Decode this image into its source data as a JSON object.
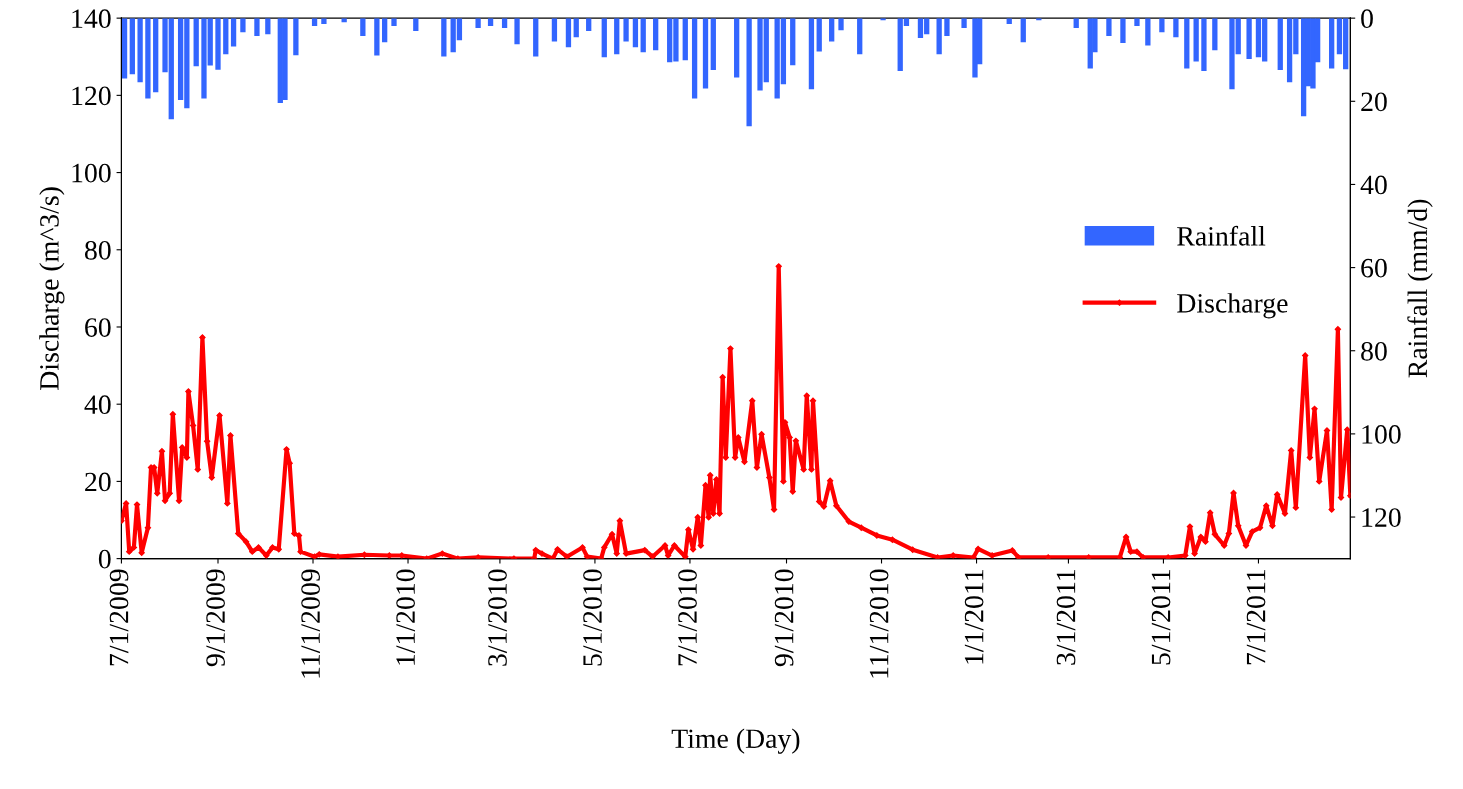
{
  "chart_data": {
    "type": "line",
    "xlabel": "Time (Day)",
    "ylabel": "Discharge (m^3/s)",
    "y2label": "Rainfall (mm/d)",
    "xlim": [
      "2009-07-01",
      "2011-08-29"
    ],
    "xticks": [
      {
        "value": "2009-07-01",
        "label": "7/1/2009"
      },
      {
        "value": "2009-09-01",
        "label": "9/1/2009"
      },
      {
        "value": "2009-11-01",
        "label": "11/1/2009"
      },
      {
        "value": "2010-01-01",
        "label": "1/1/2010"
      },
      {
        "value": "2010-03-01",
        "label": "3/1/2010"
      },
      {
        "value": "2010-05-01",
        "label": "5/1/2010"
      },
      {
        "value": "2010-07-01",
        "label": "7/1/2010"
      },
      {
        "value": "2010-09-01",
        "label": "9/1/2010"
      },
      {
        "value": "2010-11-01",
        "label": "11/1/2010"
      },
      {
        "value": "2011-01-01",
        "label": "1/1/2011"
      },
      {
        "value": "2011-03-01",
        "label": "3/1/2011"
      },
      {
        "value": "2011-05-01",
        "label": "5/1/2011"
      },
      {
        "value": "2011-07-01",
        "label": "7/1/2011"
      }
    ],
    "ylim": [
      0,
      140
    ],
    "yticks": [
      0,
      20,
      40,
      60,
      80,
      100,
      120,
      140
    ],
    "y2lim": [
      130,
      0
    ],
    "y2ticks": [
      0,
      20,
      40,
      60,
      80,
      100,
      120
    ],
    "legend": "right",
    "grid": false,
    "series": [
      {
        "name": "Rainfall",
        "type": "bar",
        "axis": "y2",
        "color": "#3366ff",
        "x": [
          "2009-07-03",
          "2009-07-08",
          "2009-07-13",
          "2009-07-18",
          "2009-07-23",
          "2009-07-29",
          "2009-08-02",
          "2009-08-08",
          "2009-08-12",
          "2009-08-18",
          "2009-08-23",
          "2009-08-27",
          "2009-09-01",
          "2009-09-06",
          "2009-09-11",
          "2009-09-17",
          "2009-09-26",
          "2009-10-03",
          "2009-10-11",
          "2009-10-14",
          "2009-10-21",
          "2009-11-02",
          "2009-11-08",
          "2009-11-21",
          "2009-12-03",
          "2009-12-12",
          "2009-12-17",
          "2009-12-23",
          "2010-01-06",
          "2010-01-24",
          "2010-01-30",
          "2010-02-03",
          "2010-02-15",
          "2010-02-23",
          "2010-03-04",
          "2010-03-12",
          "2010-03-24",
          "2010-04-05",
          "2010-04-14",
          "2010-04-19",
          "2010-04-27",
          "2010-05-07",
          "2010-05-15",
          "2010-05-21",
          "2010-05-27",
          "2010-06-01",
          "2010-06-09",
          "2010-06-18",
          "2010-06-22",
          "2010-06-28",
          "2010-07-04",
          "2010-07-11",
          "2010-07-16",
          "2010-07-31",
          "2010-08-08",
          "2010-08-15",
          "2010-08-19",
          "2010-08-26",
          "2010-08-30",
          "2010-09-05",
          "2010-09-17",
          "2010-09-22",
          "2010-09-30",
          "2010-10-06",
          "2010-10-18",
          "2010-11-02",
          "2010-11-13",
          "2010-11-17",
          "2010-11-26",
          "2010-11-30",
          "2010-12-08",
          "2010-12-13",
          "2010-12-24",
          "2010-12-31",
          "2011-01-03",
          "2011-01-22",
          "2011-01-31",
          "2011-02-10",
          "2011-03-06",
          "2011-03-15",
          "2011-03-18",
          "2011-03-27",
          "2011-04-05",
          "2011-04-14",
          "2011-04-21",
          "2011-04-30",
          "2011-05-09",
          "2011-05-16",
          "2011-05-22",
          "2011-05-27",
          "2011-06-03",
          "2011-06-14",
          "2011-06-18",
          "2011-06-25",
          "2011-07-01",
          "2011-07-05",
          "2011-07-15",
          "2011-07-21",
          "2011-07-25",
          "2011-07-30",
          "2011-08-02",
          "2011-08-05",
          "2011-08-08",
          "2011-08-17",
          "2011-08-22",
          "2011-08-26"
        ],
        "values": [
          14.5,
          13.5,
          15.4,
          19.3,
          17.8,
          13,
          24.3,
          19.7,
          21.7,
          11.6,
          19.3,
          11.4,
          12.4,
          8.7,
          6.8,
          3.4,
          4.3,
          3.9,
          20.4,
          19.7,
          8.9,
          1.9,
          1.4,
          1,
          4.3,
          9,
          5.8,
          1.9,
          3.1,
          9.2,
          8.2,
          5.3,
          2.4,
          1.9,
          2.4,
          6.3,
          9.2,
          5.6,
          7,
          4.6,
          3.1,
          9.4,
          8.7,
          5.6,
          7,
          8.2,
          7.7,
          10.6,
          10.4,
          10.1,
          19.3,
          16.9,
          12.5,
          14.3,
          26,
          17.4,
          15.4,
          19.3,
          15.9,
          11.3,
          17.1,
          8,
          5.6,
          2.9,
          8.7,
          0.5,
          12.7,
          1.9,
          4.8,
          3.9,
          8.7,
          4.3,
          2.4,
          14.3,
          11.1,
          1.4,
          5.8,
          0.5,
          2.4,
          12.1,
          8.2,
          4.3,
          6,
          1.9,
          6.6,
          3.4,
          4.6,
          12.1,
          10.4,
          12.7,
          7.7,
          17.1,
          8.7,
          9.8,
          9.4,
          10.4,
          12.5,
          15.4,
          8.7,
          23.6,
          16.4,
          16.9,
          10.6,
          12.1,
          8.7,
          12.3
        ]
      },
      {
        "name": "Discharge",
        "color": "#ff0000",
        "marker": "diamond",
        "x": [
          "2009-07-01",
          "2009-07-04",
          "2009-07-06",
          "2009-07-09",
          "2009-07-11",
          "2009-07-14",
          "2009-07-18",
          "2009-07-20",
          "2009-07-22",
          "2009-07-24",
          "2009-07-27",
          "2009-07-29",
          "2009-08-01",
          "2009-08-03",
          "2009-08-07",
          "2009-08-09",
          "2009-08-12",
          "2009-08-13",
          "2009-08-16",
          "2009-08-19",
          "2009-08-22",
          "2009-08-25",
          "2009-08-28",
          "2009-09-02",
          "2009-09-07",
          "2009-09-09",
          "2009-09-14",
          "2009-09-19",
          "2009-09-23",
          "2009-09-27",
          "2009-10-02",
          "2009-10-06",
          "2009-10-10",
          "2009-10-15",
          "2009-10-17",
          "2009-10-20",
          "2009-10-23",
          "2009-10-24",
          "2009-11-02",
          "2009-11-05",
          "2009-11-17",
          "2009-12-04",
          "2009-12-20",
          "2009-12-28",
          "2010-01-13",
          "2010-01-23",
          "2010-02-02",
          "2010-02-15",
          "2010-03-10",
          "2010-03-23",
          "2010-03-24",
          "2010-03-28",
          "2010-04-04",
          "2010-04-07",
          "2010-04-13",
          "2010-04-23",
          "2010-04-26",
          "2010-05-05",
          "2010-05-07",
          "2010-05-12",
          "2010-05-15",
          "2010-05-17",
          "2010-05-21",
          "2010-06-02",
          "2010-06-07",
          "2010-06-15",
          "2010-06-17",
          "2010-06-21",
          "2010-06-28",
          "2010-06-30",
          "2010-07-03",
          "2010-07-06",
          "2010-07-08",
          "2010-07-11",
          "2010-07-13",
          "2010-07-14",
          "2010-07-16",
          "2010-07-18",
          "2010-07-20",
          "2010-07-22",
          "2010-07-24",
          "2010-07-27",
          "2010-07-30",
          "2010-08-01",
          "2010-08-05",
          "2010-08-10",
          "2010-08-13",
          "2010-08-16",
          "2010-08-21",
          "2010-08-24",
          "2010-08-27",
          "2010-08-30",
          "2010-08-31",
          "2010-09-03",
          "2010-09-05",
          "2010-09-07",
          "2010-09-12",
          "2010-09-14",
          "2010-09-17",
          "2010-09-18",
          "2010-09-22",
          "2010-09-25",
          "2010-09-29",
          "2010-10-03",
          "2010-10-11",
          "2010-10-19",
          "2010-10-29",
          "2010-11-08",
          "2010-11-21",
          "2010-12-07",
          "2010-12-17",
          "2010-12-30",
          "2011-01-02",
          "2011-01-11",
          "2011-01-24",
          "2011-01-28",
          "2011-02-16",
          "2011-03-14",
          "2011-04-03",
          "2011-04-07",
          "2011-04-10",
          "2011-04-14",
          "2011-04-18",
          "2011-05-04",
          "2011-05-15",
          "2011-05-18",
          "2011-05-21",
          "2011-05-25",
          "2011-05-28",
          "2011-05-31",
          "2011-06-03",
          "2011-06-09",
          "2011-06-12",
          "2011-06-15",
          "2011-06-18",
          "2011-06-23",
          "2011-06-27",
          "2011-07-02",
          "2011-07-06",
          "2011-07-10",
          "2011-07-13",
          "2011-07-18",
          "2011-07-22",
          "2011-07-25",
          "2011-07-31",
          "2011-08-03",
          "2011-08-06",
          "2011-08-09",
          "2011-08-14",
          "2011-08-17",
          "2011-08-21",
          "2011-08-23",
          "2011-08-27",
          "2011-08-29"
        ],
        "values": [
          9.8,
          14.3,
          1.8,
          2.9,
          14,
          1.5,
          8,
          23.6,
          23.6,
          16.9,
          27.8,
          15,
          16.9,
          37.4,
          15,
          28.8,
          26.2,
          43.3,
          34.5,
          23.1,
          57.3,
          30.4,
          21,
          37.1,
          14.3,
          31.9,
          6.5,
          4.4,
          1.8,
          2.9,
          0.8,
          2.9,
          2.4,
          28.3,
          24.7,
          6.5,
          6,
          1.8,
          0.5,
          1.1,
          0.5,
          1,
          0.8,
          0.8,
          0,
          1.3,
          0,
          0.3,
          0,
          0,
          2.2,
          1.3,
          0,
          2.4,
          0.5,
          2.9,
          0.5,
          0,
          2.9,
          6.3,
          1.3,
          9.8,
          1.3,
          2.2,
          0.5,
          3.4,
          0.8,
          3.4,
          0.5,
          7.5,
          2.4,
          10.7,
          3.4,
          19,
          10.7,
          21.6,
          11.7,
          20.5,
          11.7,
          47,
          26.2,
          54.4,
          26.2,
          31.4,
          25.1,
          40.9,
          23.6,
          32.2,
          21,
          12.7,
          75.7,
          20,
          35.3,
          31.4,
          17.4,
          30.5,
          23.1,
          42.2,
          23.1,
          40.9,
          14.8,
          13.5,
          20.2,
          13.7,
          9.6,
          8,
          6,
          4.9,
          2.3,
          0.3,
          0.8,
          0.3,
          2.5,
          0.8,
          2.1,
          0.3,
          0.3,
          0.3,
          0.3,
          5.6,
          1.8,
          1.8,
          0.3,
          0.3,
          0.8,
          8.3,
          1.3,
          5.6,
          4.4,
          11.9,
          6.3,
          3.4,
          6.5,
          17,
          8.5,
          3.4,
          7,
          8,
          13.7,
          8.5,
          16.6,
          11.7,
          28,
          13.2,
          52.6,
          26.2,
          38.8,
          20,
          33.2,
          12.7,
          59.4,
          15.8,
          33.4,
          16.3
        ]
      }
    ]
  }
}
